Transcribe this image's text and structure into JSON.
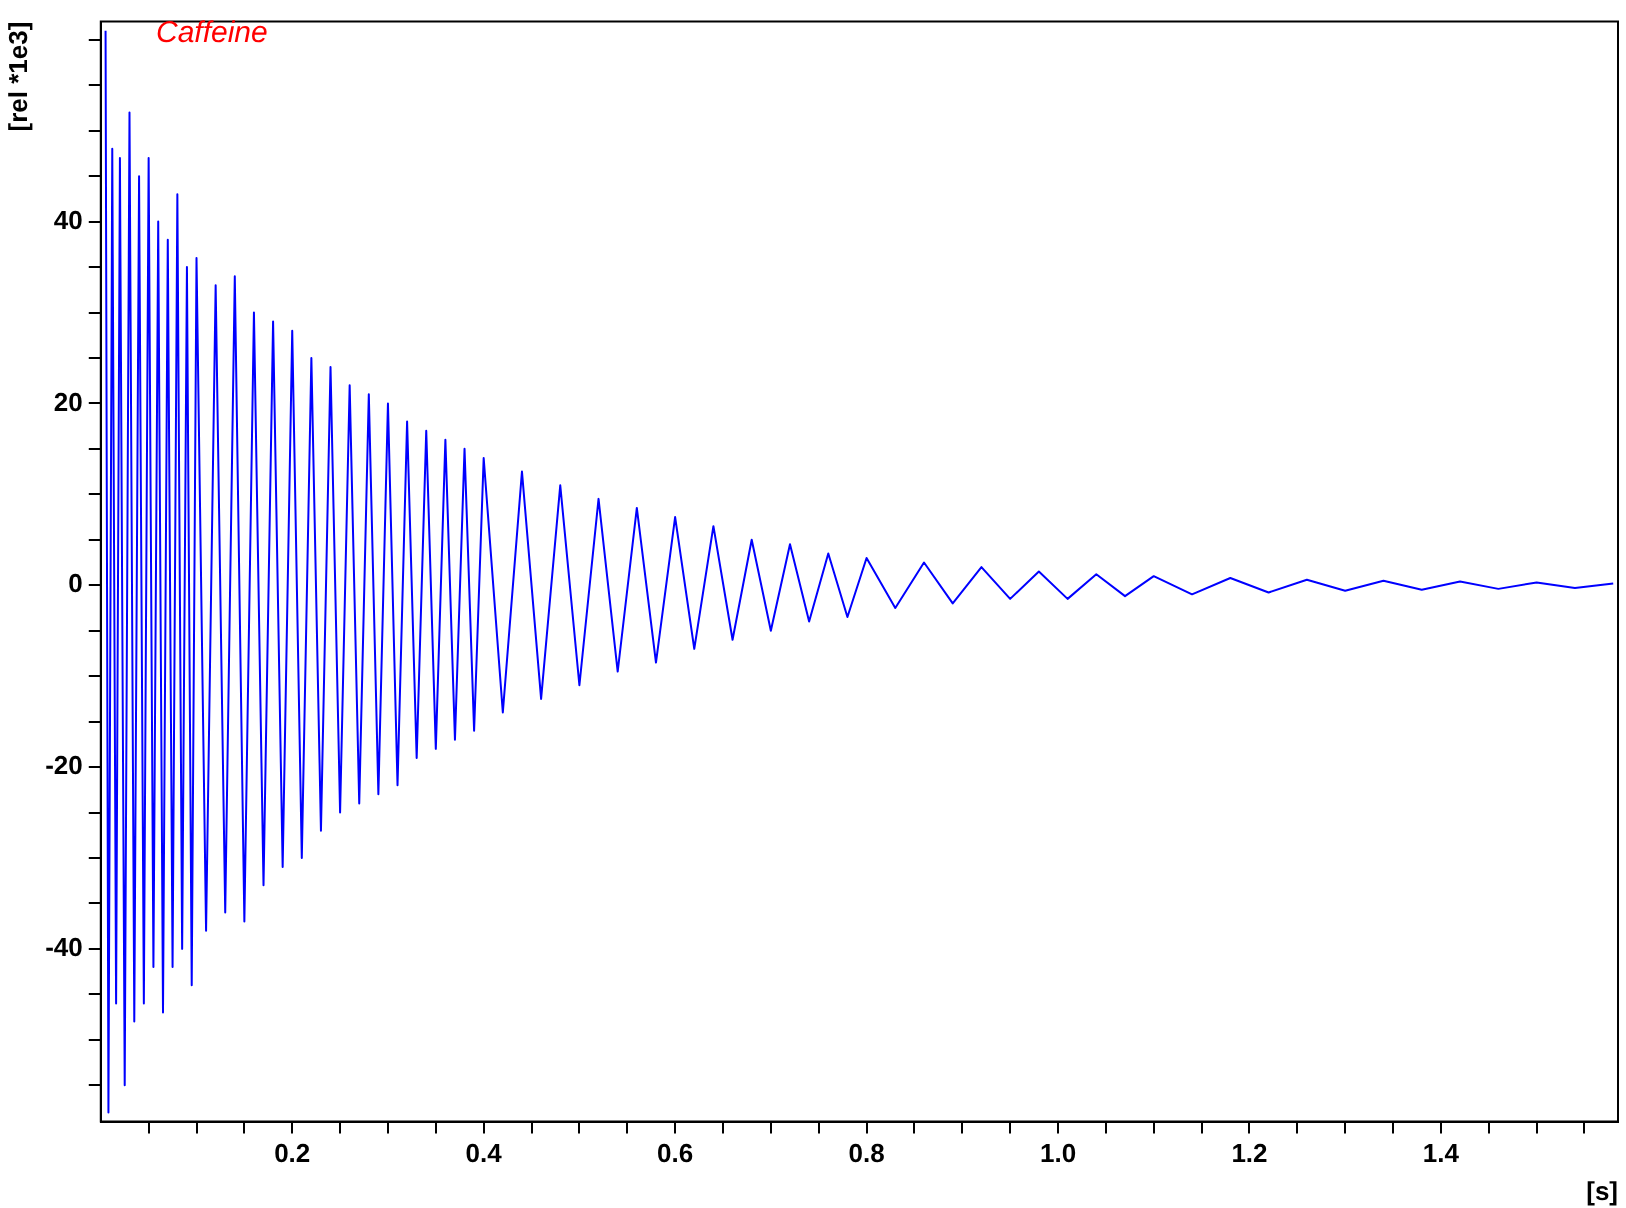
{
  "chart_data": {
    "type": "line",
    "title": "Caffeine",
    "xlabel": "[s]",
    "ylabel": "[rel *1e3]",
    "xlim": [
      0,
      1.585
    ],
    "ylim": [
      -59,
      62
    ],
    "xticks": [
      {
        "value": 0.05,
        "label": null
      },
      {
        "value": 0.1,
        "label": null
      },
      {
        "value": 0.15,
        "label": null
      },
      0.2,
      {
        "value": 0.25,
        "label": null
      },
      {
        "value": 0.3,
        "label": null
      },
      {
        "value": 0.35,
        "label": null
      },
      0.4,
      {
        "value": 0.45,
        "label": null
      },
      {
        "value": 0.5,
        "label": null
      },
      {
        "value": 0.55,
        "label": null
      },
      0.6,
      {
        "value": 0.65,
        "label": null
      },
      {
        "value": 0.7,
        "label": null
      },
      {
        "value": 0.75,
        "label": null
      },
      0.8,
      {
        "value": 0.85,
        "label": null
      },
      {
        "value": 0.9,
        "label": null
      },
      {
        "value": 0.95,
        "label": null
      },
      {
        "value": 1.0,
        "label": "1.0"
      },
      {
        "value": 1.05,
        "label": null
      },
      {
        "value": 1.1,
        "label": null
      },
      {
        "value": 1.15,
        "label": null
      },
      1.2,
      {
        "value": 1.25,
        "label": null
      },
      {
        "value": 1.3,
        "label": null
      },
      {
        "value": 1.35,
        "label": null
      },
      1.4,
      {
        "value": 1.45,
        "label": null
      },
      {
        "value": 1.5,
        "label": null
      },
      {
        "value": 1.55,
        "label": null
      }
    ],
    "yticks": [
      {
        "value": -55,
        "label": null
      },
      {
        "value": -50,
        "label": null
      },
      {
        "value": -45,
        "label": null
      },
      -40,
      {
        "value": -35,
        "label": null
      },
      {
        "value": -30,
        "label": null
      },
      {
        "value": -25,
        "label": null
      },
      -20,
      {
        "value": -15,
        "label": null
      },
      {
        "value": -10,
        "label": null
      },
      {
        "value": -5,
        "label": null
      },
      0,
      {
        "value": 5,
        "label": null
      },
      {
        "value": 10,
        "label": null
      },
      {
        "value": 15,
        "label": null
      },
      20,
      {
        "value": 25,
        "label": null
      },
      {
        "value": 30,
        "label": null
      },
      {
        "value": 35,
        "label": null
      },
      40,
      {
        "value": 45,
        "label": null
      },
      {
        "value": 50,
        "label": null
      },
      {
        "value": 55,
        "label": null
      },
      {
        "value": 60,
        "label": null
      }
    ],
    "grid": false,
    "series": [
      {
        "color": "#0000ff",
        "x": [
          0.005,
          0.008,
          0.012,
          0.016,
          0.02,
          0.025,
          0.03,
          0.035,
          0.04,
          0.045,
          0.05,
          0.055,
          0.06,
          0.065,
          0.07,
          0.075,
          0.08,
          0.085,
          0.09,
          0.095,
          0.1,
          0.11,
          0.12,
          0.13,
          0.14,
          0.15,
          0.16,
          0.17,
          0.18,
          0.19,
          0.2,
          0.21,
          0.22,
          0.23,
          0.24,
          0.25,
          0.26,
          0.27,
          0.28,
          0.29,
          0.3,
          0.31,
          0.32,
          0.33,
          0.34,
          0.35,
          0.36,
          0.37,
          0.38,
          0.39,
          0.4,
          0.42,
          0.44,
          0.46,
          0.48,
          0.5,
          0.52,
          0.54,
          0.56,
          0.58,
          0.6,
          0.62,
          0.64,
          0.66,
          0.68,
          0.7,
          0.72,
          0.74,
          0.76,
          0.78,
          0.8,
          0.83,
          0.86,
          0.89,
          0.92,
          0.95,
          0.98,
          1.01,
          1.04,
          1.07,
          1.1,
          1.14,
          1.18,
          1.22,
          1.26,
          1.3,
          1.34,
          1.38,
          1.42,
          1.46,
          1.5,
          1.54,
          1.58
        ],
        "values": [
          61,
          -58,
          48,
          -46,
          47,
          -55,
          52,
          -48,
          45,
          -46,
          47,
          -42,
          40,
          -47,
          38,
          -42,
          43,
          -40,
          35,
          -44,
          36,
          -38,
          33,
          -36,
          34,
          -37,
          30,
          -33,
          29,
          -31,
          28,
          -30,
          25,
          -27,
          24,
          -25,
          22,
          -24,
          21,
          -23,
          20,
          -22,
          18,
          -19,
          17,
          -18,
          16,
          -17,
          15,
          -16,
          14,
          -14,
          12.5,
          -12.5,
          11,
          -11,
          9.5,
          -9.5,
          8.5,
          -8.5,
          7.5,
          -7,
          6.5,
          -6,
          5,
          -5,
          4.5,
          -4,
          3.5,
          -3.5,
          3,
          -2.5,
          2.5,
          -2,
          2,
          -1.5,
          1.5,
          -1.5,
          1.2,
          -1.2,
          1,
          -1,
          0.8,
          -0.8,
          0.6,
          -0.6,
          0.5,
          -0.5,
          0.4,
          -0.4,
          0.3,
          -0.3,
          0.2
        ]
      }
    ]
  }
}
